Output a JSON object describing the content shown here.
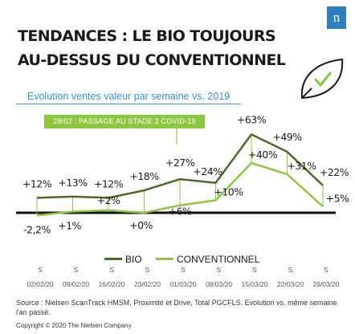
{
  "brand": {
    "logo_letter": "n",
    "color": "#2f7fc1"
  },
  "header": {
    "title": "TENDANCES : LE BIO TOUJOURS AU-DESSUS DU CONVENTIONNEL",
    "subtitle": "Evolution ventes valeur par semaine vs. 2019"
  },
  "icons": {
    "leaf": "leaf-check-icon"
  },
  "chart_data": {
    "type": "line",
    "categories": [
      "02/02/20",
      "09/02/20",
      "16/02/20",
      "23/02/20",
      "01/03/20",
      "08/03/20",
      "15/03/20",
      "22/03/20",
      "29/03/20"
    ],
    "category_prefix": "S",
    "series": [
      {
        "name": "BIO",
        "color": "#4a6b2a",
        "values": [
          12,
          13,
          12,
          18,
          27,
          24,
          63,
          49,
          22
        ],
        "labels": [
          "+12%",
          "+13%",
          "+12%",
          "+18%",
          "+27%",
          "+24%",
          "+63%",
          "+49%",
          "+22%"
        ]
      },
      {
        "name": "CONVENTIONNEL",
        "color": "#8dc63f",
        "values": [
          -2.2,
          1,
          2,
          0,
          6,
          10,
          40,
          31,
          5
        ],
        "labels": [
          "-2,2%",
          "+1%",
          "+2%",
          "+0%",
          "+6%",
          "+10%",
          "+40%",
          "+31%",
          "+5%"
        ]
      }
    ],
    "annotation": "28/02 : PASSAGE AU STADE 2 COVID-19",
    "ylim": [
      -5,
      70
    ]
  },
  "footer": {
    "source": "Source : Nielsen ScanTrack HMSM, Proximité et Drive, Total PGCFLS. Evolution vs. même semaine l'an passé.",
    "copyright": "Copyright © 2020 The Nielsen Company"
  }
}
